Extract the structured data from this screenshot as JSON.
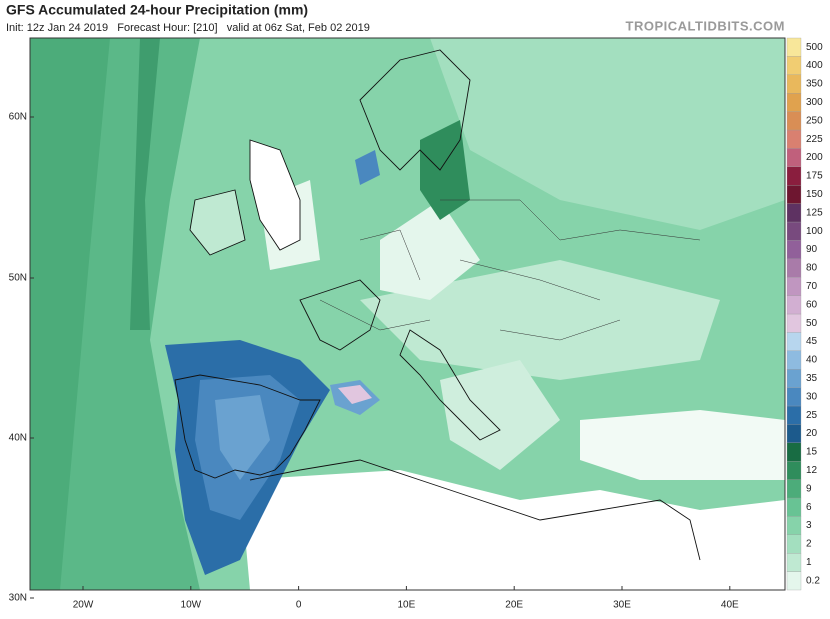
{
  "header": {
    "title": "GFS Accumulated 24-hour Precipitation (mm)",
    "subtitle": "Init: 12z Jan 24 2019   Forecast Hour: [210]   valid at 06z Sat, Feb 02 2019",
    "brand": "TROPICALTIDBITS.COM"
  },
  "map": {
    "lat_labels": [
      "60N",
      "50N",
      "40N",
      "30N"
    ],
    "lon_labels": [
      "20W",
      "10W",
      "0",
      "10E",
      "20E",
      "30E",
      "40E"
    ]
  },
  "legend": {
    "levels": [
      0.2,
      1,
      2,
      3,
      6,
      9,
      12,
      15,
      20,
      25,
      30,
      35,
      40,
      45,
      50,
      60,
      70,
      80,
      90,
      100,
      125,
      150,
      175,
      200,
      225,
      250,
      300,
      350,
      400,
      500
    ],
    "colors": [
      "#e4f6ec",
      "#bfe9d2",
      "#a3dfbf",
      "#86d3aa",
      "#68c394",
      "#4cac7a",
      "#2f8d5c",
      "#186c43",
      "#1c5a8c",
      "#2b6ea8",
      "#4a88bf",
      "#6aa2d0",
      "#8ebbe0",
      "#b7d6ee",
      "#e1c6df",
      "#d2afd2",
      "#c096c0",
      "#a97ba9",
      "#91609a",
      "#784a7e",
      "#5e3262",
      "#6e1630",
      "#8a1e3e",
      "#c0607c",
      "#d98070",
      "#d98e55",
      "#e0a24e",
      "#e9b85c",
      "#f1cd72",
      "#f8e79a"
    ]
  }
}
